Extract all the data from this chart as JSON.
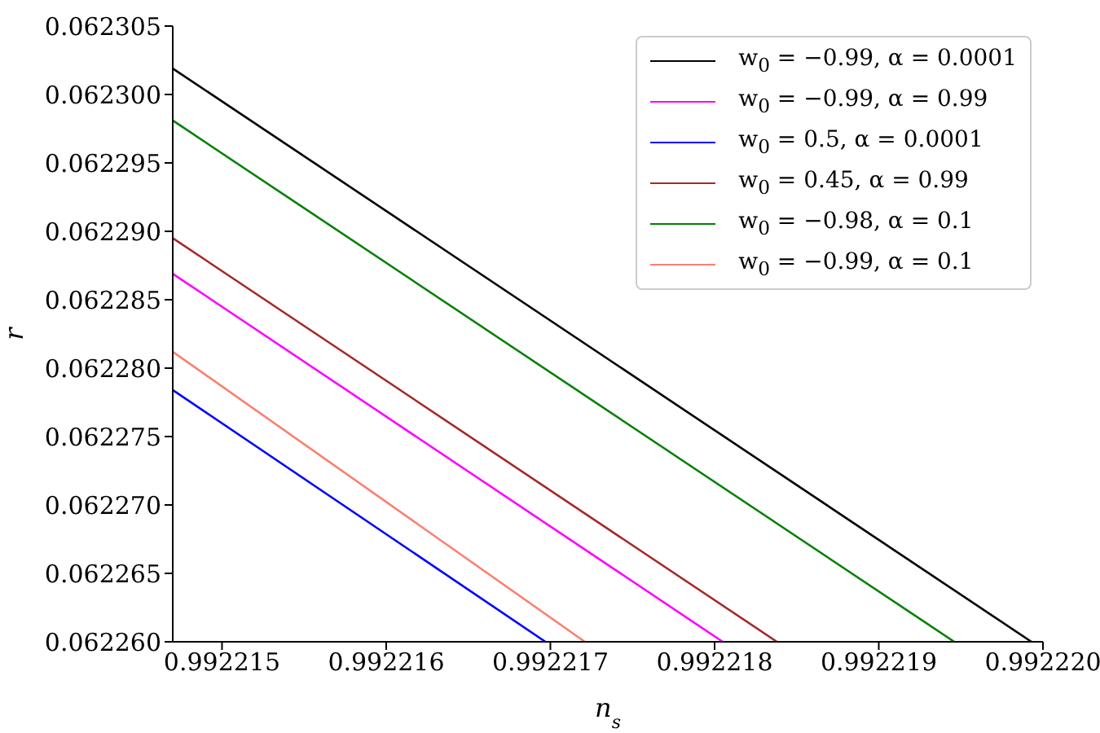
{
  "chart_data": {
    "type": "line",
    "xlabel": "n$_{s}$",
    "ylabel": "r",
    "xlim": [
      0.9922147,
      0.99222
    ],
    "ylim": [
      0.06226,
      0.062305
    ],
    "xticks": [
      0.992215,
      0.992216,
      0.992217,
      0.992218,
      0.992219,
      {
        "value": 0.99222,
        "label": "0.992220"
      }
    ],
    "yticks": [
      {
        "value": 0.06226,
        "label": "0.062260"
      },
      0.062265,
      {
        "value": 0.06227,
        "label": "0.062270"
      },
      0.062275,
      {
        "value": 0.06228,
        "label": "0.062280"
      },
      0.062285,
      {
        "value": 0.06229,
        "label": "0.062290"
      },
      0.062295,
      {
        "value": 0.0623,
        "label": "0.062300"
      },
      0.062305
    ],
    "legend": "top right",
    "series": [
      {
        "name": "w$_{0}$ = −0.99, α = 0.0001",
        "color": "#000000",
        "x": [
          0.9922147,
          0.99221993
        ],
        "values": [
          0.0623019,
          0.06226
        ]
      },
      {
        "name": "w$_{0}$ = −0.99, α = 0.99",
        "color": "#ff00ff",
        "x": [
          0.9922147,
          0.99221805
        ],
        "values": [
          0.0622869,
          0.06226
        ]
      },
      {
        "name": "w$_{0}$ = 0.5, α = 0.0001",
        "color": "#0000ff",
        "x": [
          0.9922147,
          0.99221697
        ],
        "values": [
          0.0622784,
          0.06226
        ]
      },
      {
        "name": "w$_{0}$ = 0.45, α = 0.99",
        "color": "#a52a2a",
        "x": [
          0.9922147,
          0.99221838
        ],
        "values": [
          0.0622895,
          0.06226
        ]
      },
      {
        "name": "w$_{0}$ = −0.98, α = 0.1",
        "color": "#008000",
        "x": [
          0.9922147,
          0.99221946
        ],
        "values": [
          0.0622981,
          0.06226
        ]
      },
      {
        "name": "w$_{0}$ = −0.99, α = 0.1",
        "color": "#fa8072",
        "x": [
          0.9922147,
          0.99221721
        ],
        "values": [
          0.0622812,
          0.06226
        ]
      }
    ]
  }
}
